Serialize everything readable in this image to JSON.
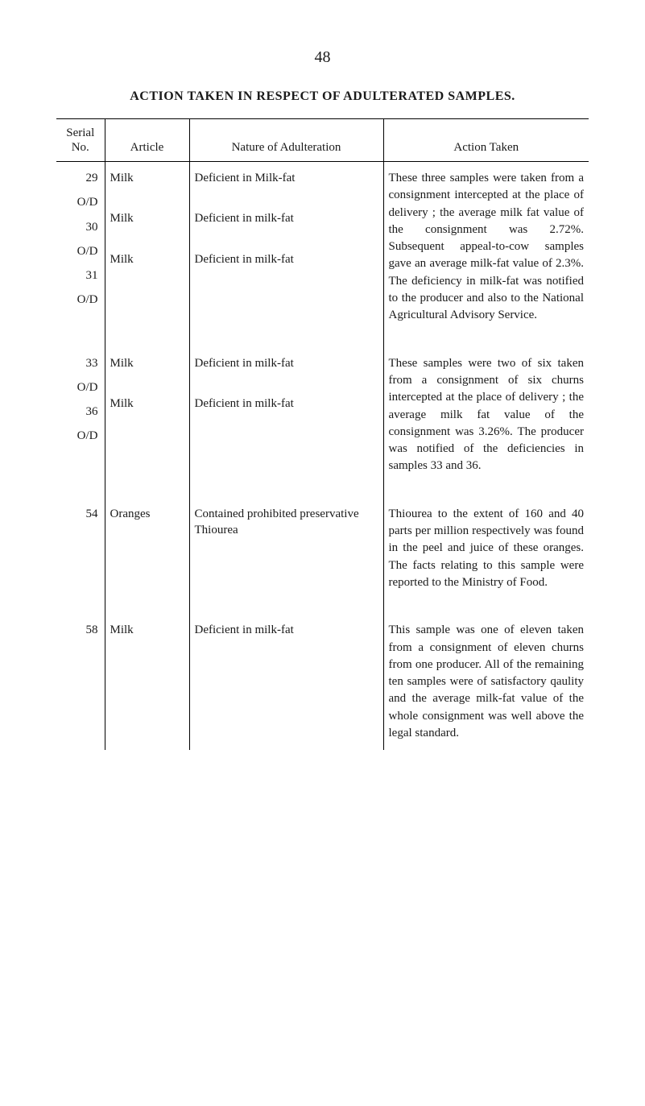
{
  "page_number": "48",
  "title": "ACTION TAKEN IN RESPECT OF ADULTERATED SAMPLES.",
  "columns": {
    "serial": "Serial\nNo.",
    "article": "Article",
    "nature": "Nature of Adulteration",
    "action": "Action Taken"
  },
  "rows": [
    {
      "serial": [
        "29",
        "O/D",
        "30",
        "O/D",
        "31",
        "O/D"
      ],
      "article": [
        "Milk",
        "",
        "Milk",
        "",
        "Milk"
      ],
      "nature": [
        "Deficient in Milk-fat",
        "",
        "Deficient in milk-fat",
        "",
        "Deficient in milk-fat"
      ],
      "action": "These three samples were taken from a consignment intercepted at the place of delivery ; the average milk fat value of the consignment was 2.72%. Subsequent appeal-to-cow samples gave an average milk-fat value of 2.3%. The deficiency in milk-fat was notified to the producer and also to the National Agricultural Advisory Service."
    },
    {
      "serial": [
        "33",
        "O/D",
        "36",
        "O/D"
      ],
      "article": [
        "Milk",
        "",
        "Milk"
      ],
      "nature": [
        "Deficient in milk-fat",
        "",
        "Deficient in milk-fat"
      ],
      "action": "These samples were two of six taken from a consignment of six churns intercepted at the place of delivery ; the average milk fat value of the consignment was 3.26%. The producer was notified of the deficiencies in samples 33 and 36."
    },
    {
      "serial": [
        "54"
      ],
      "article": [
        "Oranges"
      ],
      "nature": [
        "Contained prohibited preservative Thiourea"
      ],
      "action": "Thiourea to the extent of 160 and 40 parts per million respectively was found in the peel and juice of these oranges. The facts relating to this sample were reported to the Ministry of Food."
    },
    {
      "serial": [
        "58"
      ],
      "article": [
        "Milk"
      ],
      "nature": [
        "Deficient in milk-fat"
      ],
      "action": "This sample was one of eleven taken from a consignment of eleven churns from one producer. All of the remaining ten samples were of satisfactory qaulity and the average milk-fat value of the whole consignment was well above the legal standard."
    }
  ]
}
